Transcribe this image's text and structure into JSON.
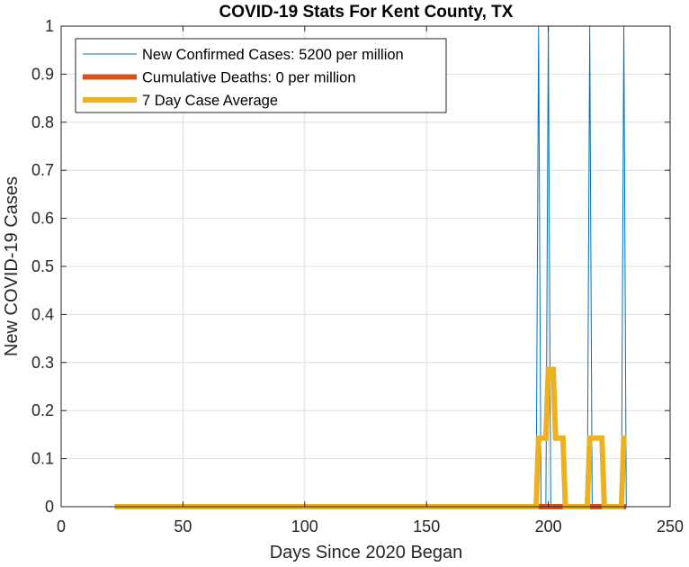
{
  "chart_data": {
    "type": "line",
    "title": "COVID-19 Stats For Kent County, TX",
    "xlabel": "Days Since 2020 Began",
    "ylabel": "New COVID-19 Cases",
    "xlim": [
      0,
      250
    ],
    "ylim": [
      0,
      1
    ],
    "xticks": [
      0,
      50,
      100,
      150,
      200,
      250
    ],
    "yticks": [
      0,
      0.1,
      0.2,
      0.3,
      0.4,
      0.5,
      0.6,
      0.7,
      0.8,
      0.9,
      1
    ],
    "xtick_labels": [
      "0",
      "50",
      "100",
      "150",
      "200",
      "250"
    ],
    "ytick_labels": [
      "0",
      "0.1",
      "0.2",
      "0.3",
      "0.4",
      "0.5",
      "0.6",
      "0.7",
      "0.8",
      "0.9",
      "1"
    ],
    "grid": true,
    "legend_position": "top-left",
    "series": [
      {
        "name": "New Confirmed Cases: 5200 per million",
        "color": "#0072BD",
        "style": "thin",
        "x": [
          22,
          195,
          196,
          197,
          199,
          200,
          201,
          216,
          217,
          218,
          230,
          231,
          232
        ],
        "y": [
          0,
          0,
          1,
          0,
          0,
          1,
          0,
          0,
          1,
          0,
          0,
          1,
          0
        ]
      },
      {
        "name": "Cumulative Deaths: 0 per million",
        "color": "#D95319",
        "style": "thick",
        "x": [
          22,
          232
        ],
        "y": [
          0,
          0
        ]
      },
      {
        "name": "7 Day Case Average",
        "color": "#EDB120",
        "style": "thick",
        "x": [
          22,
          195,
          196,
          199,
          200,
          202,
          203,
          206,
          207,
          216,
          217,
          222,
          223,
          230,
          231,
          232
        ],
        "y": [
          0,
          0,
          0.1429,
          0.1429,
          0.2857,
          0.2857,
          0.1429,
          0.1429,
          0,
          0,
          0.1429,
          0.1429,
          0,
          0,
          0.1429,
          0.1429
        ]
      }
    ]
  }
}
